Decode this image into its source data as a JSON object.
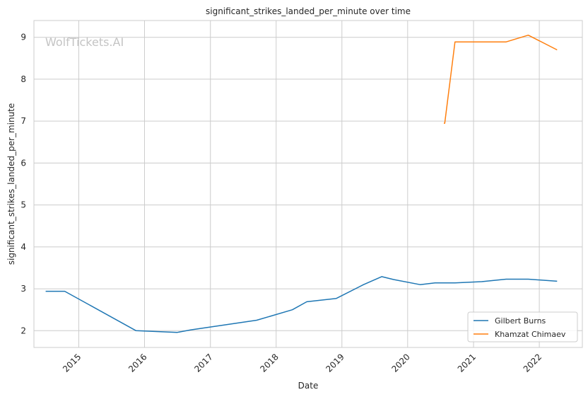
{
  "chart_data": {
    "type": "line",
    "title": "significant_strikes_landed_per_minute over time",
    "xlabel": "Date",
    "ylabel": "significant_strikes_landed_per_minute",
    "watermark": "WolfTickets.AI",
    "xlim": [
      "2014-04-27",
      "2022-08-28"
    ],
    "ylim": [
      1.6,
      9.4
    ],
    "x_ticks": [
      "2015",
      "2016",
      "2017",
      "2018",
      "2019",
      "2020",
      "2021",
      "2022"
    ],
    "y_ticks": [
      2,
      3,
      4,
      5,
      6,
      7,
      8,
      9
    ],
    "grid": true,
    "legend_position": "lower right",
    "series": [
      {
        "name": "Gilbert Burns",
        "color": "#1f77b4",
        "points": [
          {
            "x": "2014-07-01",
            "y": 2.94
          },
          {
            "x": "2014-10-15",
            "y": 2.94
          },
          {
            "x": "2015-11-15",
            "y": 2.0
          },
          {
            "x": "2016-07-01",
            "y": 1.96
          },
          {
            "x": "2016-09-15",
            "y": 2.02
          },
          {
            "x": "2017-09-15",
            "y": 2.25
          },
          {
            "x": "2018-04-01",
            "y": 2.5
          },
          {
            "x": "2018-06-20",
            "y": 2.69
          },
          {
            "x": "2018-12-01",
            "y": 2.77
          },
          {
            "x": "2019-05-01",
            "y": 3.1
          },
          {
            "x": "2019-08-10",
            "y": 3.29
          },
          {
            "x": "2019-10-15",
            "y": 3.22
          },
          {
            "x": "2020-03-10",
            "y": 3.1
          },
          {
            "x": "2020-06-01",
            "y": 3.14
          },
          {
            "x": "2020-09-20",
            "y": 3.14
          },
          {
            "x": "2021-02-15",
            "y": 3.17
          },
          {
            "x": "2021-07-01",
            "y": 3.23
          },
          {
            "x": "2021-11-01",
            "y": 3.23
          },
          {
            "x": "2022-04-10",
            "y": 3.18
          }
        ]
      },
      {
        "name": "Khamzat Chimaev",
        "color": "#ff7f0e",
        "points": [
          {
            "x": "2020-07-20",
            "y": 6.95
          },
          {
            "x": "2020-07-25",
            "y": 6.95
          },
          {
            "x": "2020-09-20",
            "y": 8.89
          },
          {
            "x": "2021-07-01",
            "y": 8.89
          },
          {
            "x": "2021-11-01",
            "y": 9.05
          },
          {
            "x": "2022-04-10",
            "y": 8.7
          }
        ]
      }
    ]
  }
}
